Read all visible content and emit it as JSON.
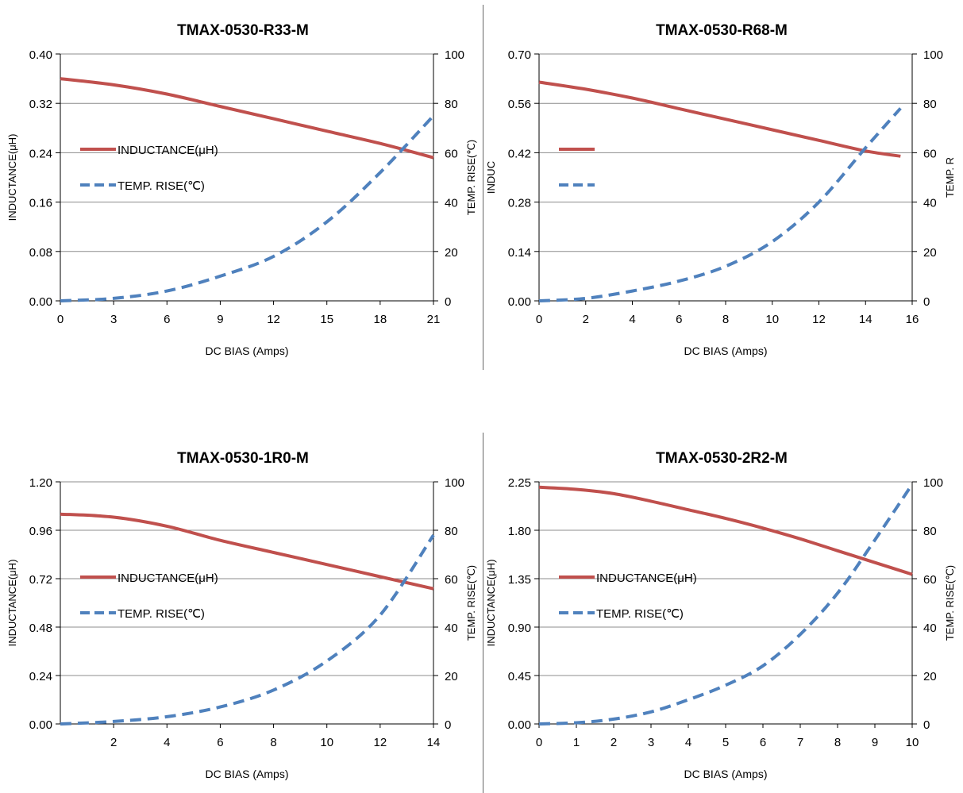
{
  "chart_data": [
    {
      "type": "line",
      "title": "TMAX-0530-R33-M",
      "xlabel": "DC BIAS  (Amps)",
      "ylabel": "INDUCTANCE(μH)",
      "y2label": "TEMP.  RISE(℃)",
      "xlim": [
        0,
        21
      ],
      "xticks": [
        0,
        3,
        6,
        9,
        12,
        15,
        18,
        21
      ],
      "ylim": [
        0,
        0.4
      ],
      "yticks": [
        "0.00",
        "0.08",
        "0.16",
        "0.24",
        "0.32",
        "0.40"
      ],
      "y2lim": [
        0,
        100
      ],
      "y2ticks": [
        "0",
        "20",
        "40",
        "60",
        "80",
        "100"
      ],
      "grid": true,
      "legend_placement": "left-middle",
      "series": [
        {
          "name": "INDUCTANCE(μH)",
          "axis": "left",
          "style": "solid",
          "color": "#c0504d",
          "x": [
            0,
            3,
            6,
            9,
            12,
            15,
            18,
            21
          ],
          "y": [
            0.36,
            0.35,
            0.335,
            0.315,
            0.295,
            0.275,
            0.255,
            0.232
          ]
        },
        {
          "name": "TEMP. RISE(℃)",
          "axis": "right",
          "style": "dashed",
          "color": "#4f81bd",
          "x": [
            0,
            3,
            6,
            9,
            12,
            15,
            18,
            21
          ],
          "y": [
            0,
            1,
            4,
            10,
            18,
            32,
            52,
            75
          ]
        }
      ]
    },
    {
      "type": "line",
      "title": "TMAX-0530-R68-M",
      "xlabel": "DC BIAS  (Amps)",
      "ylabel": "INDUC",
      "y2label": "TEMP.  R",
      "xlim": [
        0,
        16
      ],
      "xticks": [
        0,
        2,
        4,
        6,
        8,
        10,
        12,
        14,
        16
      ],
      "ylim": [
        0,
        0.7
      ],
      "yticks": [
        "0.00",
        "0.14",
        "0.28",
        "0.42",
        "0.56",
        "0.70"
      ],
      "y2lim": [
        0,
        100
      ],
      "y2ticks": [
        "0",
        "20",
        "40",
        "60",
        "80",
        "100"
      ],
      "grid": true,
      "legend_placement": "left-middle",
      "series": [
        {
          "name": "",
          "axis": "left",
          "style": "solid",
          "color": "#c0504d",
          "x": [
            0,
            2,
            4,
            6,
            8,
            10,
            12,
            14,
            15.5
          ],
          "y": [
            0.62,
            0.6,
            0.575,
            0.545,
            0.515,
            0.485,
            0.455,
            0.425,
            0.41
          ]
        },
        {
          "name": "",
          "axis": "right",
          "style": "dashed",
          "color": "#4f81bd",
          "x": [
            0,
            2,
            4,
            6,
            8,
            10,
            12,
            14,
            15.5
          ],
          "y": [
            0,
            1,
            4,
            8,
            14,
            24,
            40,
            62,
            78
          ]
        }
      ]
    },
    {
      "type": "line",
      "title": "TMAX-0530-1R0-M",
      "xlabel": "DC BIAS  (Amps)",
      "ylabel": "INDUCTANCE(μH)",
      "y2label": "TEMP.  RISE(℃)",
      "xlim": [
        0,
        14
      ],
      "xticks": [
        2,
        4,
        6,
        8,
        10,
        12,
        14
      ],
      "ylim": [
        0,
        1.2
      ],
      "yticks": [
        "0.00",
        "0.24",
        "0.48",
        "0.72",
        "0.96",
        "1.20"
      ],
      "y2lim": [
        0,
        100
      ],
      "y2ticks": [
        "0",
        "20",
        "40",
        "60",
        "80",
        "100"
      ],
      "grid": true,
      "legend_placement": "left-middle",
      "series": [
        {
          "name": "INDUCTANCE(μH)",
          "axis": "left",
          "style": "solid",
          "color": "#c0504d",
          "x": [
            0,
            2,
            4,
            6,
            8,
            10,
            12,
            14
          ],
          "y": [
            1.04,
            1.025,
            0.98,
            0.91,
            0.85,
            0.79,
            0.73,
            0.67
          ]
        },
        {
          "name": "TEMP. RISE(℃)",
          "axis": "right",
          "style": "dashed",
          "color": "#4f81bd",
          "x": [
            0,
            2,
            4,
            6,
            8,
            10,
            12,
            14
          ],
          "y": [
            0,
            1,
            3,
            7,
            14,
            26,
            45,
            78
          ]
        }
      ]
    },
    {
      "type": "line",
      "title": "TMAX-0530-2R2-M",
      "xlabel": "DC BIAS  (Amps)",
      "ylabel": "INDUCTANCE(μH)",
      "y2label": "TEMP.  RISE(℃)",
      "xlim": [
        0,
        10
      ],
      "xticks": [
        0,
        1,
        2,
        3,
        4,
        5,
        6,
        7,
        8,
        9,
        10
      ],
      "ylim": [
        0,
        2.25
      ],
      "yticks": [
        "0.00",
        "0.45",
        "0.90",
        "1.35",
        "1.80",
        "2.25"
      ],
      "y2lim": [
        0,
        100
      ],
      "y2ticks": [
        "0",
        "20",
        "40",
        "60",
        "80",
        "100"
      ],
      "grid": true,
      "legend_placement": "left-middle",
      "series": [
        {
          "name": "INDUCTANCE(μH)",
          "axis": "left",
          "style": "solid",
          "color": "#c0504d",
          "x": [
            0,
            1,
            2,
            3,
            4,
            5,
            6,
            7,
            8,
            9,
            10
          ],
          "y": [
            2.2,
            2.18,
            2.14,
            2.07,
            1.99,
            1.91,
            1.82,
            1.72,
            1.61,
            1.5,
            1.39
          ]
        },
        {
          "name": "TEMP. RISE(℃)",
          "axis": "right",
          "style": "dashed",
          "color": "#4f81bd",
          "x": [
            0,
            1,
            2,
            3,
            4,
            5,
            6,
            7,
            8,
            9,
            10
          ],
          "y": [
            0,
            0.5,
            2,
            5,
            10,
            16,
            24,
            37,
            54,
            76,
            99
          ]
        }
      ]
    }
  ]
}
